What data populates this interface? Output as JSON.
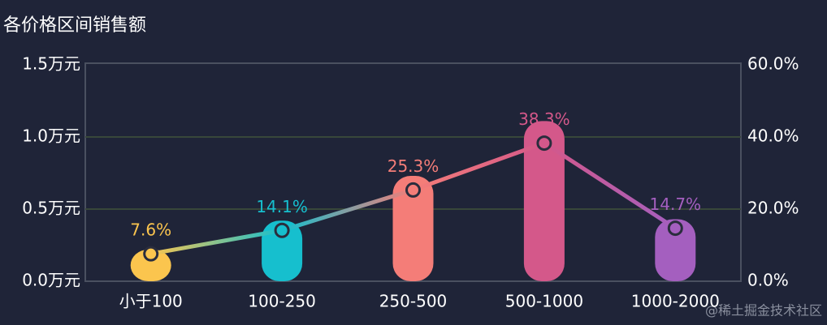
{
  "chart_data": {
    "type": "bar-line",
    "title": "各价格区间销售额",
    "categories": [
      "小于100",
      "100-250",
      "250-500",
      "500-1000",
      "1000-2000"
    ],
    "colors": [
      "#fbc54e",
      "#16bfce",
      "#f47d78",
      "#d4588a",
      "#a45fbf"
    ],
    "series": [
      {
        "type": "bar",
        "values": [
          0.22,
          0.42,
          0.73,
          1.11,
          0.43
        ]
      },
      {
        "type": "line",
        "axis": "y2",
        "values": [
          7.6,
          14.1,
          25.3,
          38.3,
          14.7
        ],
        "value_labels": [
          "7.6%",
          "14.1%",
          "25.3%",
          "38.3%",
          "14.7%"
        ]
      }
    ],
    "ylim": [
      0,
      1.5
    ],
    "yticks": [
      {
        "value": 0,
        "label": "0.0万元"
      },
      {
        "value": 0.5,
        "label": "0.5万元"
      },
      {
        "value": 1.0,
        "label": "1.0万元"
      },
      {
        "value": 1.5,
        "label": "1.5万元"
      }
    ],
    "y2lim": [
      0,
      60
    ],
    "y2ticks": [
      {
        "value": 0,
        "label": "0.0%"
      },
      {
        "value": 20,
        "label": "20.0%"
      },
      {
        "value": 40,
        "label": "40.0%"
      },
      {
        "value": 60,
        "label": "60.0%"
      }
    ],
    "grid": true,
    "watermark": "@稀土掘金技术社区"
  }
}
